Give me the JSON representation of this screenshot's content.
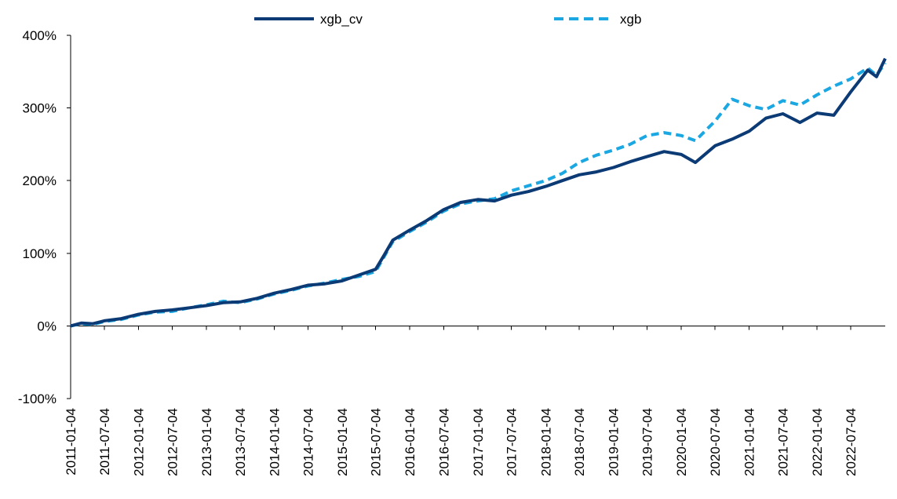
{
  "chart_data": {
    "type": "line",
    "title": "",
    "xlabel": "",
    "ylabel": "",
    "ylim": [
      -100,
      400
    ],
    "y_ticks": [
      {
        "value": -100,
        "label": "-100%"
      },
      {
        "value": 0,
        "label": "0%"
      },
      {
        "value": 100,
        "label": "100%"
      },
      {
        "value": 200,
        "label": "200%"
      },
      {
        "value": 300,
        "label": "300%"
      },
      {
        "value": 400,
        "label": "400%"
      }
    ],
    "x_ticks": [
      "2011-01-04",
      "2011-07-04",
      "2012-01-04",
      "2012-07-04",
      "2013-01-04",
      "2013-07-04",
      "2014-01-04",
      "2014-07-04",
      "2015-01-04",
      "2015-07-04",
      "2016-01-04",
      "2016-07-04",
      "2017-01-04",
      "2017-07-04",
      "2018-01-04",
      "2018-07-04",
      "2019-01-04",
      "2019-07-04",
      "2020-01-04",
      "2020-07-04",
      "2021-01-04",
      "2021-07-04",
      "2022-01-04",
      "2022-07-04"
    ],
    "x_range": [
      "2011-01-04",
      "2023-01-06"
    ],
    "grid": false,
    "legend_position": "top-center",
    "series": [
      {
        "name": "xgb_cv",
        "color": "#0b3a75",
        "style": "solid",
        "points": [
          [
            "2011-01-04",
            0
          ],
          [
            "2011-03-04",
            4
          ],
          [
            "2011-05-04",
            3
          ],
          [
            "2011-07-04",
            7
          ],
          [
            "2011-10-04",
            10
          ],
          [
            "2012-01-04",
            16
          ],
          [
            "2012-04-04",
            20
          ],
          [
            "2012-07-04",
            22
          ],
          [
            "2012-10-04",
            25
          ],
          [
            "2013-01-04",
            28
          ],
          [
            "2013-04-04",
            32
          ],
          [
            "2013-07-04",
            33
          ],
          [
            "2013-10-04",
            38
          ],
          [
            "2014-01-04",
            45
          ],
          [
            "2014-04-04",
            50
          ],
          [
            "2014-07-04",
            56
          ],
          [
            "2014-10-04",
            58
          ],
          [
            "2015-01-04",
            62
          ],
          [
            "2015-04-04",
            70
          ],
          [
            "2015-07-04",
            78
          ],
          [
            "2015-08-20",
            98
          ],
          [
            "2015-10-04",
            118
          ],
          [
            "2016-01-04",
            132
          ],
          [
            "2016-04-04",
            145
          ],
          [
            "2016-07-04",
            160
          ],
          [
            "2016-10-04",
            170
          ],
          [
            "2017-01-04",
            174
          ],
          [
            "2017-04-04",
            172
          ],
          [
            "2017-07-04",
            180
          ],
          [
            "2017-10-04",
            185
          ],
          [
            "2018-01-04",
            192
          ],
          [
            "2018-04-04",
            200
          ],
          [
            "2018-07-04",
            208
          ],
          [
            "2018-10-04",
            212
          ],
          [
            "2019-01-04",
            218
          ],
          [
            "2019-04-04",
            226
          ],
          [
            "2019-07-04",
            233
          ],
          [
            "2019-10-04",
            240
          ],
          [
            "2020-01-04",
            236
          ],
          [
            "2020-03-20",
            225
          ],
          [
            "2020-07-04",
            248
          ],
          [
            "2020-10-04",
            257
          ],
          [
            "2021-01-04",
            268
          ],
          [
            "2021-04-04",
            286
          ],
          [
            "2021-07-04",
            292
          ],
          [
            "2021-10-04",
            280
          ],
          [
            "2022-01-04",
            293
          ],
          [
            "2022-04-04",
            290
          ],
          [
            "2022-07-04",
            322
          ],
          [
            "2022-10-04",
            352
          ],
          [
            "2022-11-20",
            343
          ],
          [
            "2023-01-06",
            368
          ]
        ]
      },
      {
        "name": "xgb",
        "color": "#1aa7e2",
        "style": "dashed",
        "points": [
          [
            "2011-01-04",
            0
          ],
          [
            "2011-03-04",
            3
          ],
          [
            "2011-05-04",
            2
          ],
          [
            "2011-07-04",
            6
          ],
          [
            "2011-10-04",
            9
          ],
          [
            "2012-01-04",
            15
          ],
          [
            "2012-04-04",
            19
          ],
          [
            "2012-07-04",
            20
          ],
          [
            "2012-10-04",
            25
          ],
          [
            "2013-01-04",
            29
          ],
          [
            "2013-04-04",
            34
          ],
          [
            "2013-07-04",
            32
          ],
          [
            "2013-10-04",
            37
          ],
          [
            "2014-01-04",
            44
          ],
          [
            "2014-04-04",
            49
          ],
          [
            "2014-07-04",
            55
          ],
          [
            "2014-10-04",
            59
          ],
          [
            "2015-01-04",
            64
          ],
          [
            "2015-04-04",
            68
          ],
          [
            "2015-07-04",
            75
          ],
          [
            "2015-08-20",
            96
          ],
          [
            "2015-10-04",
            116
          ],
          [
            "2016-01-04",
            130
          ],
          [
            "2016-04-04",
            143
          ],
          [
            "2016-07-04",
            158
          ],
          [
            "2016-10-04",
            168
          ],
          [
            "2017-01-04",
            172
          ],
          [
            "2017-04-04",
            175
          ],
          [
            "2017-07-04",
            186
          ],
          [
            "2017-10-04",
            193
          ],
          [
            "2018-01-04",
            200
          ],
          [
            "2018-04-04",
            210
          ],
          [
            "2018-07-04",
            225
          ],
          [
            "2018-10-04",
            235
          ],
          [
            "2019-01-04",
            242
          ],
          [
            "2019-04-04",
            250
          ],
          [
            "2019-07-04",
            262
          ],
          [
            "2019-10-04",
            266
          ],
          [
            "2020-01-04",
            262
          ],
          [
            "2020-03-20",
            255
          ],
          [
            "2020-07-04",
            282
          ],
          [
            "2020-10-04",
            312
          ],
          [
            "2021-01-04",
            303
          ],
          [
            "2021-04-04",
            298
          ],
          [
            "2021-07-04",
            310
          ],
          [
            "2021-10-04",
            304
          ],
          [
            "2022-01-04",
            318
          ],
          [
            "2022-04-04",
            330
          ],
          [
            "2022-07-04",
            340
          ],
          [
            "2022-10-04",
            355
          ],
          [
            "2022-11-20",
            345
          ],
          [
            "2023-01-06",
            362
          ]
        ]
      }
    ]
  }
}
